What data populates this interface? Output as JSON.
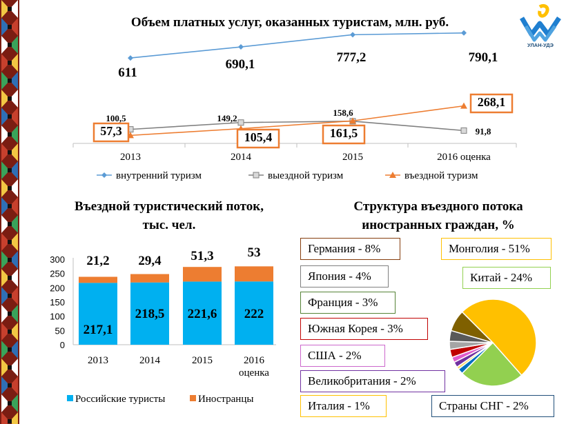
{
  "slide": {
    "title": "Объем платных услуг, оказанных туристам, млн. руб.",
    "logo_text": "УЛАН-УДЭ"
  },
  "chart_data": [
    {
      "type": "line",
      "title": "Объем платных услуг, оказанных туристам, млн. руб.",
      "categories": [
        "2013",
        "2014",
        "2015",
        "2016 оценка"
      ],
      "series": [
        {
          "name": "внутренний туризм",
          "values": [
            611,
            690.1,
            777.2,
            790.1
          ],
          "labels": [
            "611",
            "690,1",
            "777,2",
            "790,1"
          ],
          "color": "#5B9BD5",
          "marker": "diamond"
        },
        {
          "name": "выездной туризм",
          "values": [
            100.5,
            149.2,
            158.6,
            91.8
          ],
          "labels": [
            "100,5",
            "149,2",
            "158,6",
            "91,8"
          ],
          "color": "#808080",
          "marker": "square"
        },
        {
          "name": "въездной туризм",
          "values": [
            57.3,
            105.4,
            161.5,
            268.1
          ],
          "labels": [
            "57,3",
            "105,4",
            "161,5",
            "268,1"
          ],
          "color": "#ED7D31",
          "marker": "triangle",
          "label_boxes": true
        }
      ],
      "legend": "bottom"
    },
    {
      "type": "bar",
      "stacked": true,
      "title": "Въездной туристический поток, тыс. чел.",
      "categories": [
        "2013",
        "2014",
        "2015",
        "2016 оценка"
      ],
      "yticks": [
        "0",
        "50",
        "100",
        "150",
        "200",
        "250",
        "300"
      ],
      "ylim": [
        0,
        300
      ],
      "series": [
        {
          "name": "Российские туристы",
          "values": [
            217.1,
            218.5,
            221.6,
            222
          ],
          "labels": [
            "217,1",
            "218,5",
            "221,6",
            "222"
          ],
          "color": "#00B0F0"
        },
        {
          "name": "Иностранцы",
          "values": [
            21.2,
            29.4,
            51.3,
            53
          ],
          "labels": [
            "21,2",
            "29,4",
            "51,3",
            "53"
          ],
          "color": "#ED7D31"
        }
      ],
      "legend": "bottom"
    },
    {
      "type": "pie",
      "title": "Структура въездного потока иностранных граждан, %",
      "slices": [
        {
          "label": "Монголия - 51%",
          "value": 51,
          "color": "#FFC000",
          "border": "#FFC000"
        },
        {
          "label": "Китай - 24%",
          "value": 24,
          "color": "#92D050",
          "border": "#92D050"
        },
        {
          "label": "Страны СНГ - 2%",
          "value": 2,
          "color": "#0070C0",
          "border": "#1F4E79"
        },
        {
          "label": "Италия - 1%",
          "value": 1,
          "color": "#FFD966",
          "border": "#FFC000"
        },
        {
          "label": "Великобритания - 2%",
          "value": 2,
          "color": "#7030A0",
          "border": "#7030A0"
        },
        {
          "label": "США - 2%",
          "value": 2,
          "color": "#E05CCB",
          "border": "#CC66CC"
        },
        {
          "label": "Южная Корея - 3%",
          "value": 3,
          "color": "#C00000",
          "border": "#C00000"
        },
        {
          "label": "Франция - 3%",
          "value": 3,
          "color": "#A5A5A5",
          "border": "#548235"
        },
        {
          "label": "Япония - 4%",
          "value": 4,
          "color": "#595959",
          "border": "#7F7F7F"
        },
        {
          "label": "Германия - 8%",
          "value": 8,
          "color": "#7F6000",
          "border": "#843C0C"
        }
      ]
    }
  ]
}
